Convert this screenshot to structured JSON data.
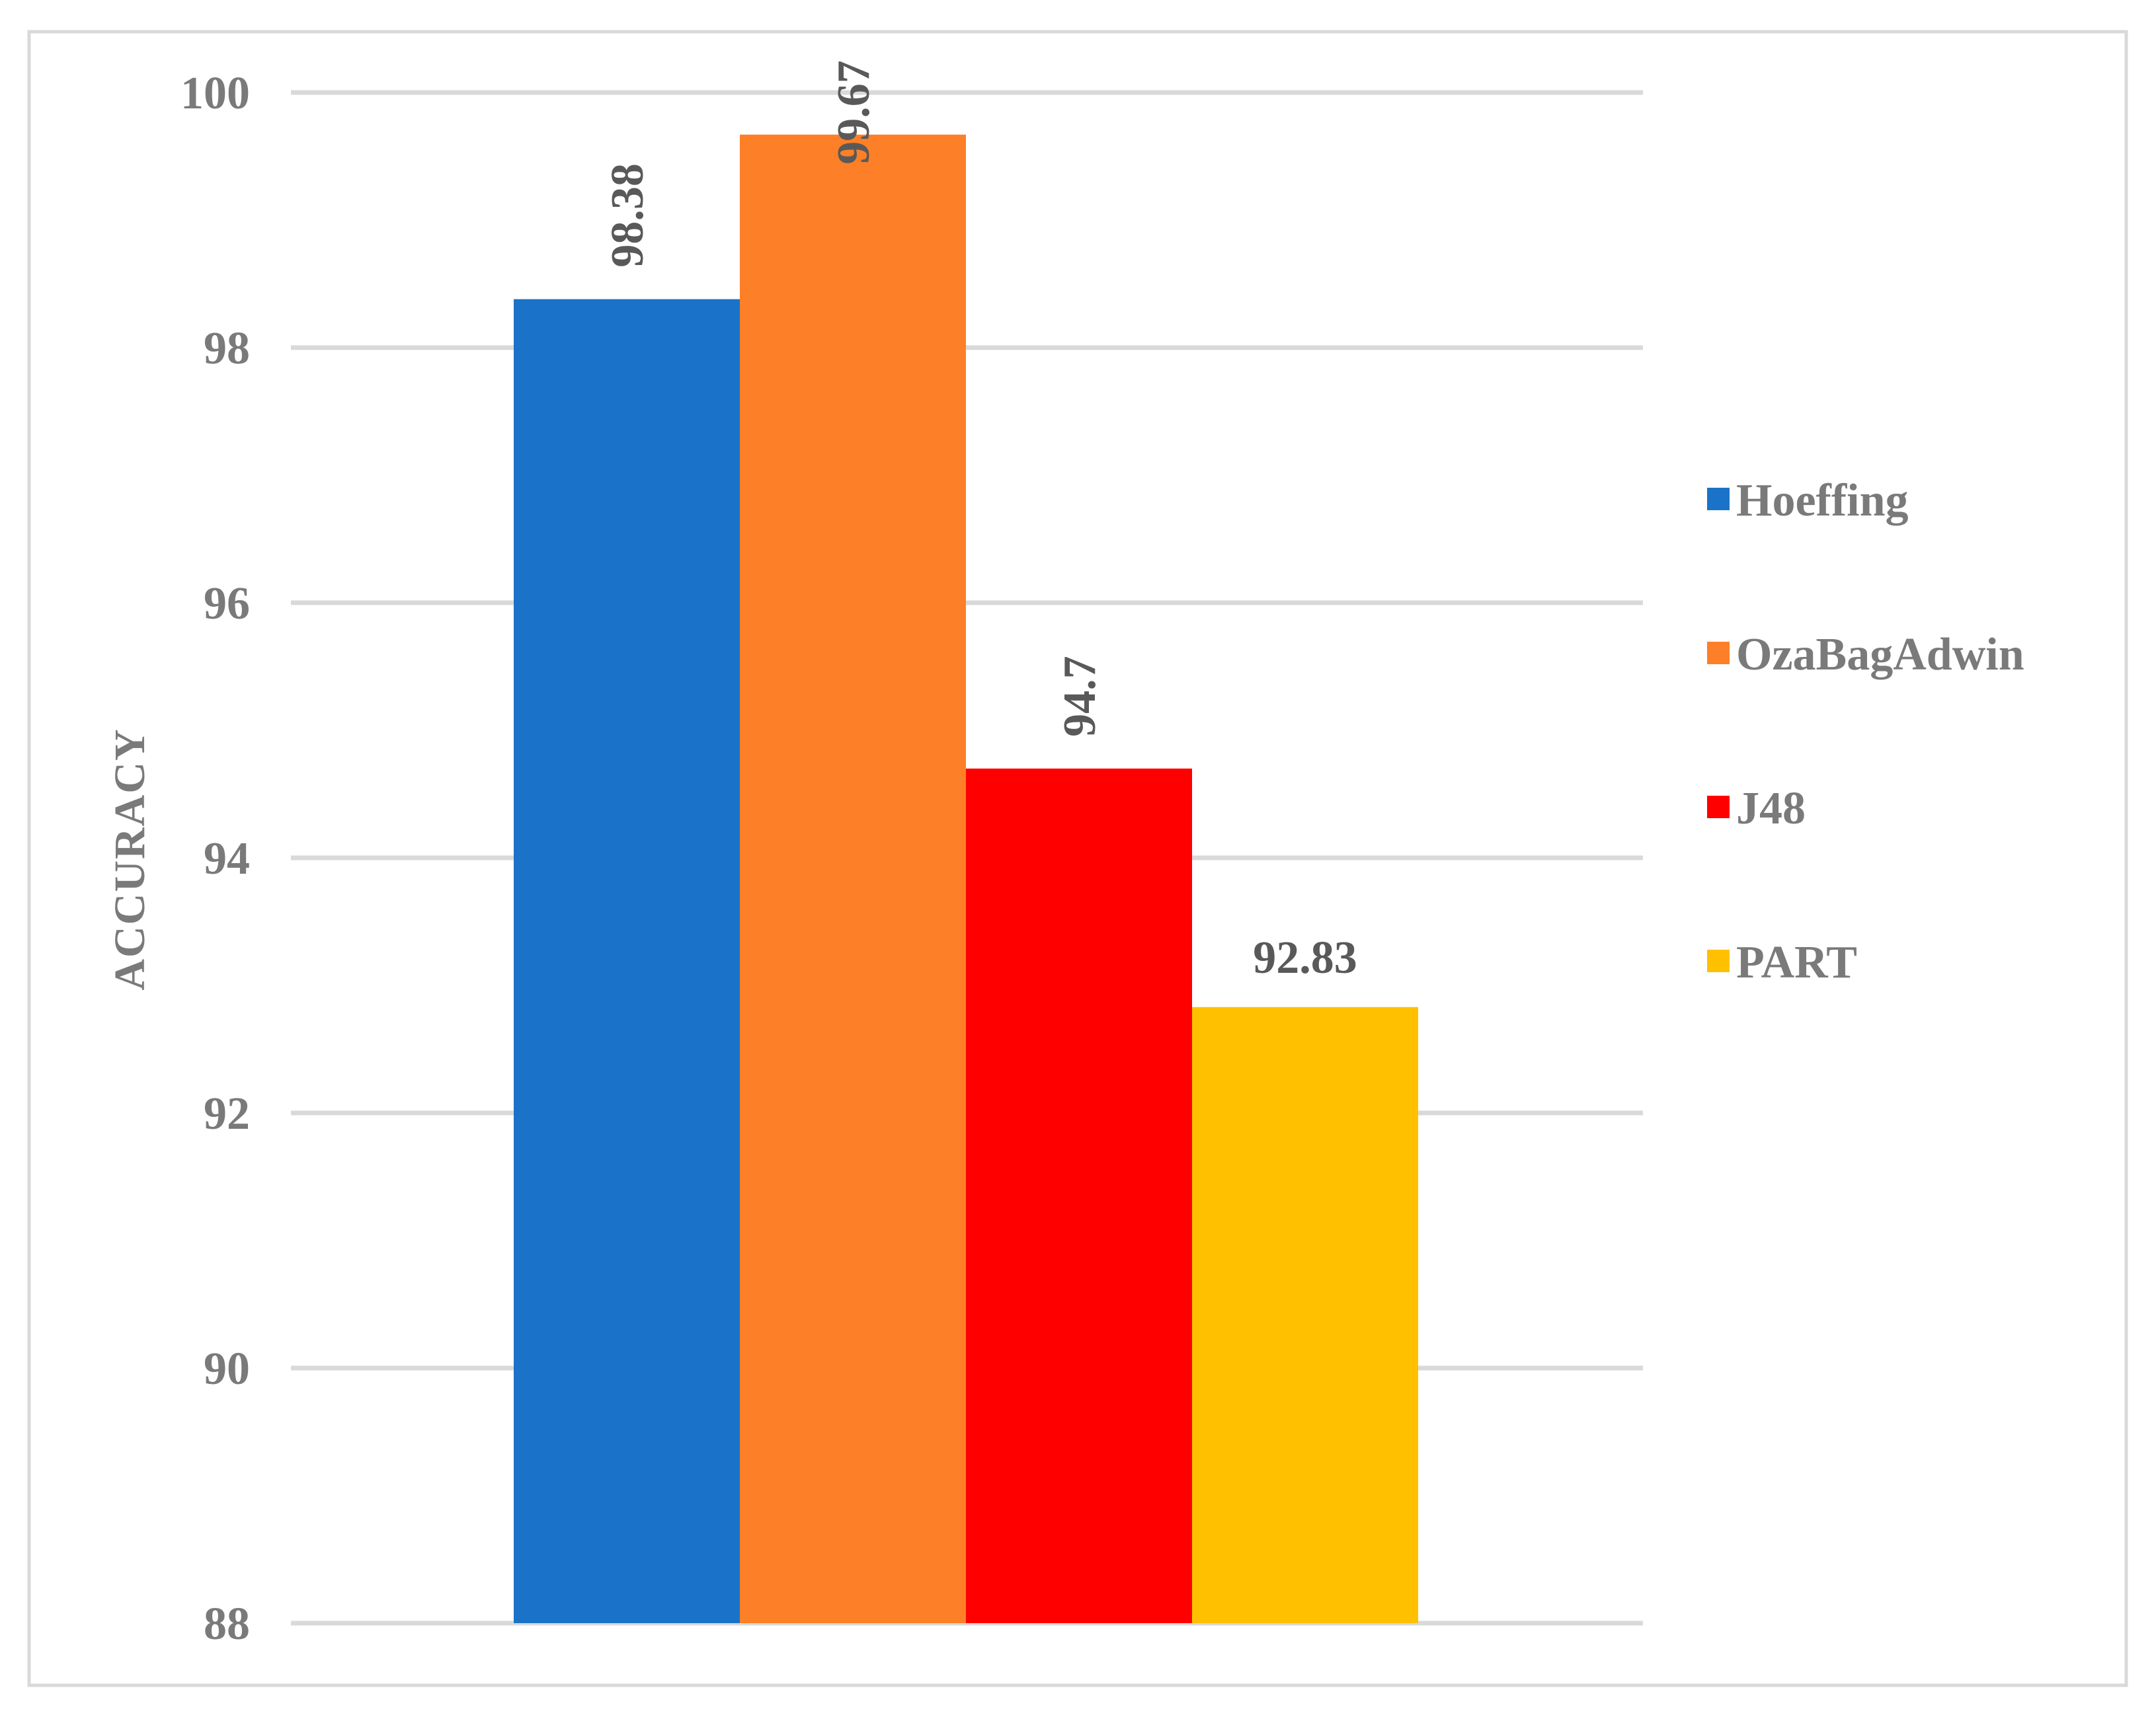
{
  "chart_data": {
    "type": "bar",
    "categories": [
      ""
    ],
    "series": [
      {
        "name": "Hoeffing",
        "values": [
          98.38
        ],
        "color": "#1a73c8"
      },
      {
        "name": "OzaBagAdwin",
        "values": [
          99.67
        ],
        "color": "#fd7f27"
      },
      {
        "name": "J48",
        "values": [
          94.7
        ],
        "color": "#ff0000"
      },
      {
        "name": "PART",
        "values": [
          92.83
        ],
        "color": "#ffc000"
      }
    ],
    "data_labels": [
      "98.38",
      "99.67",
      "94.7",
      "92.83"
    ],
    "title": "",
    "xlabel": "",
    "ylabel": "ACCURACY",
    "ylim": [
      88,
      100
    ],
    "yticks": [
      88,
      90,
      92,
      94,
      96,
      98,
      100
    ],
    "ytick_labels": [
      "88",
      "90",
      "92",
      "94",
      "96",
      "98",
      "100"
    ],
    "grid": true,
    "legend_position": "right"
  },
  "colors": {
    "gridline": "#d9d9d9",
    "text": "#7a7a7a",
    "border": "#d9d9d9"
  }
}
